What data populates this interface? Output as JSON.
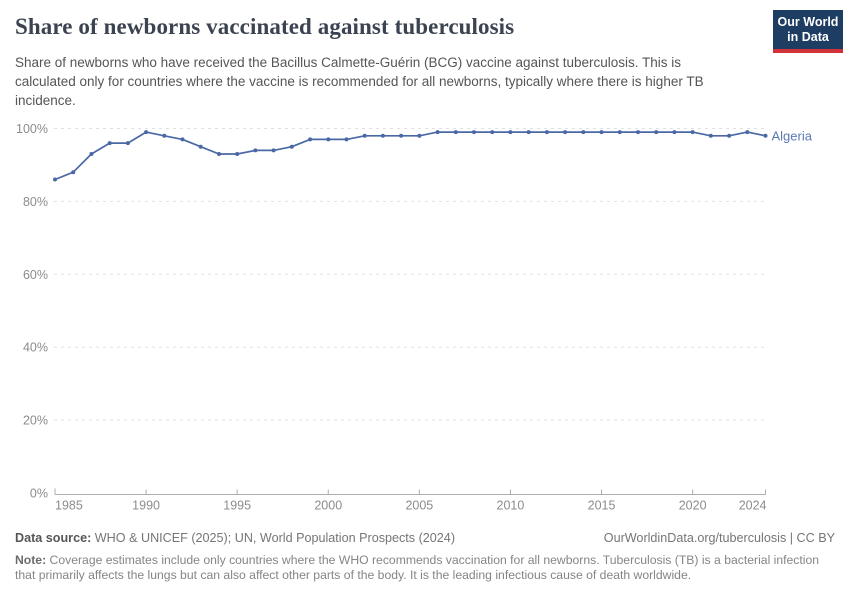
{
  "header": {
    "title": "Share of newborns vaccinated against tuberculosis",
    "subtitle": "Share of newborns who have received the Bacillus Calmette-Guérin (BCG) vaccine against tuberculosis. This is calculated only for countries where the vaccine is recommended for all newborns, typically where there is higher TB incidence.",
    "logo": {
      "line1": "Our World",
      "line2": "in Data",
      "bg_color": "#1d3d63",
      "stripe_color": "#d13239"
    }
  },
  "chart_data": {
    "type": "line",
    "title": "Share of newborns vaccinated against tuberculosis",
    "xlabel": "",
    "ylabel": "",
    "xlim": [
      1985,
      2024
    ],
    "ylim": [
      0,
      100
    ],
    "x_ticks": [
      1985,
      1990,
      1995,
      2000,
      2005,
      2010,
      2015,
      2020,
      2024
    ],
    "y_ticks": [
      0,
      20,
      40,
      60,
      80,
      100
    ],
    "y_tick_suffix": "%",
    "grid": "horizontal-dashed",
    "legend_position": "end-of-line-label",
    "series": [
      {
        "name": "Algeria",
        "color": "#4a68a5",
        "label_color": "#5b79b5",
        "x": [
          1985,
          1986,
          1987,
          1988,
          1989,
          1990,
          1991,
          1992,
          1993,
          1994,
          1995,
          1996,
          1997,
          1998,
          1999,
          2000,
          2001,
          2002,
          2003,
          2004,
          2005,
          2006,
          2007,
          2008,
          2009,
          2010,
          2011,
          2012,
          2013,
          2014,
          2015,
          2016,
          2017,
          2018,
          2019,
          2020,
          2021,
          2022,
          2023,
          2024
        ],
        "values": [
          86,
          88,
          93,
          96,
          96,
          99,
          98,
          97,
          95,
          93,
          93,
          94,
          94,
          95,
          97,
          97,
          97,
          98,
          98,
          98,
          98,
          99,
          99,
          99,
          99,
          99,
          99,
          99,
          99,
          99,
          99,
          99,
          99,
          99,
          99,
          99,
          98,
          98,
          99,
          98
        ]
      }
    ],
    "colors": {
      "gridline": "#e0e0e0",
      "axis": "#adadad",
      "tick_label": "#8c8c8c"
    }
  },
  "footer": {
    "datasource_label": "Data source:",
    "datasource_text": " WHO & UNICEF (2025); UN, World Population Prospects (2024)",
    "link_text": "OurWorldinData.org/tuberculosis | CC BY",
    "note_label": "Note:",
    "note_text": " Coverage estimates include only countries where the WHO recommends vaccination for all newborns. Tuberculosis (TB) is a bacterial infection that primarily affects the lungs but can also affect other parts of the body. It is the leading infectious cause of death worldwide."
  }
}
